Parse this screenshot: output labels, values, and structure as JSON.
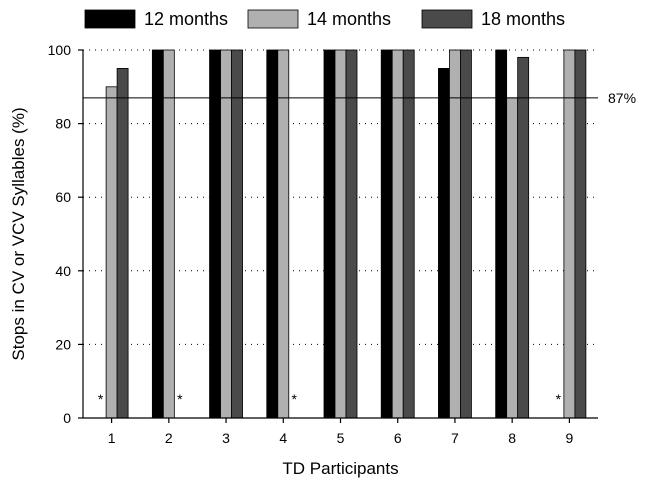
{
  "chart_data": {
    "type": "bar",
    "categories": [
      "1",
      "2",
      "3",
      "4",
      "5",
      "6",
      "7",
      "8",
      "9"
    ],
    "series": [
      {
        "name": "12 months",
        "color": "#000000",
        "values": [
          null,
          100,
          100,
          100,
          100,
          100,
          95,
          100,
          null
        ]
      },
      {
        "name": "14 months",
        "color": "#b0b0b0",
        "values": [
          90,
          100,
          100,
          100,
          100,
          100,
          100,
          87,
          100
        ]
      },
      {
        "name": "18 months",
        "color": "#4a4a4a",
        "values": [
          95,
          null,
          100,
          null,
          100,
          100,
          100,
          98,
          100
        ]
      }
    ],
    "missing_marker": "*",
    "missing": [
      {
        "category": "1",
        "series": "12 months"
      },
      {
        "category": "2",
        "series": "18 months"
      },
      {
        "category": "4",
        "series": "18 months"
      },
      {
        "category": "9",
        "series": "12 months"
      }
    ],
    "reference_line": {
      "value": 87,
      "label": "87%"
    },
    "xlabel": "TD Participants",
    "ylabel": "Stops in CV or VCV Syllables (%)",
    "ylim": [
      0,
      100
    ],
    "yticks": [
      0,
      20,
      40,
      60,
      80,
      100
    ],
    "grid": "horizontal dotted",
    "legend": "top"
  }
}
